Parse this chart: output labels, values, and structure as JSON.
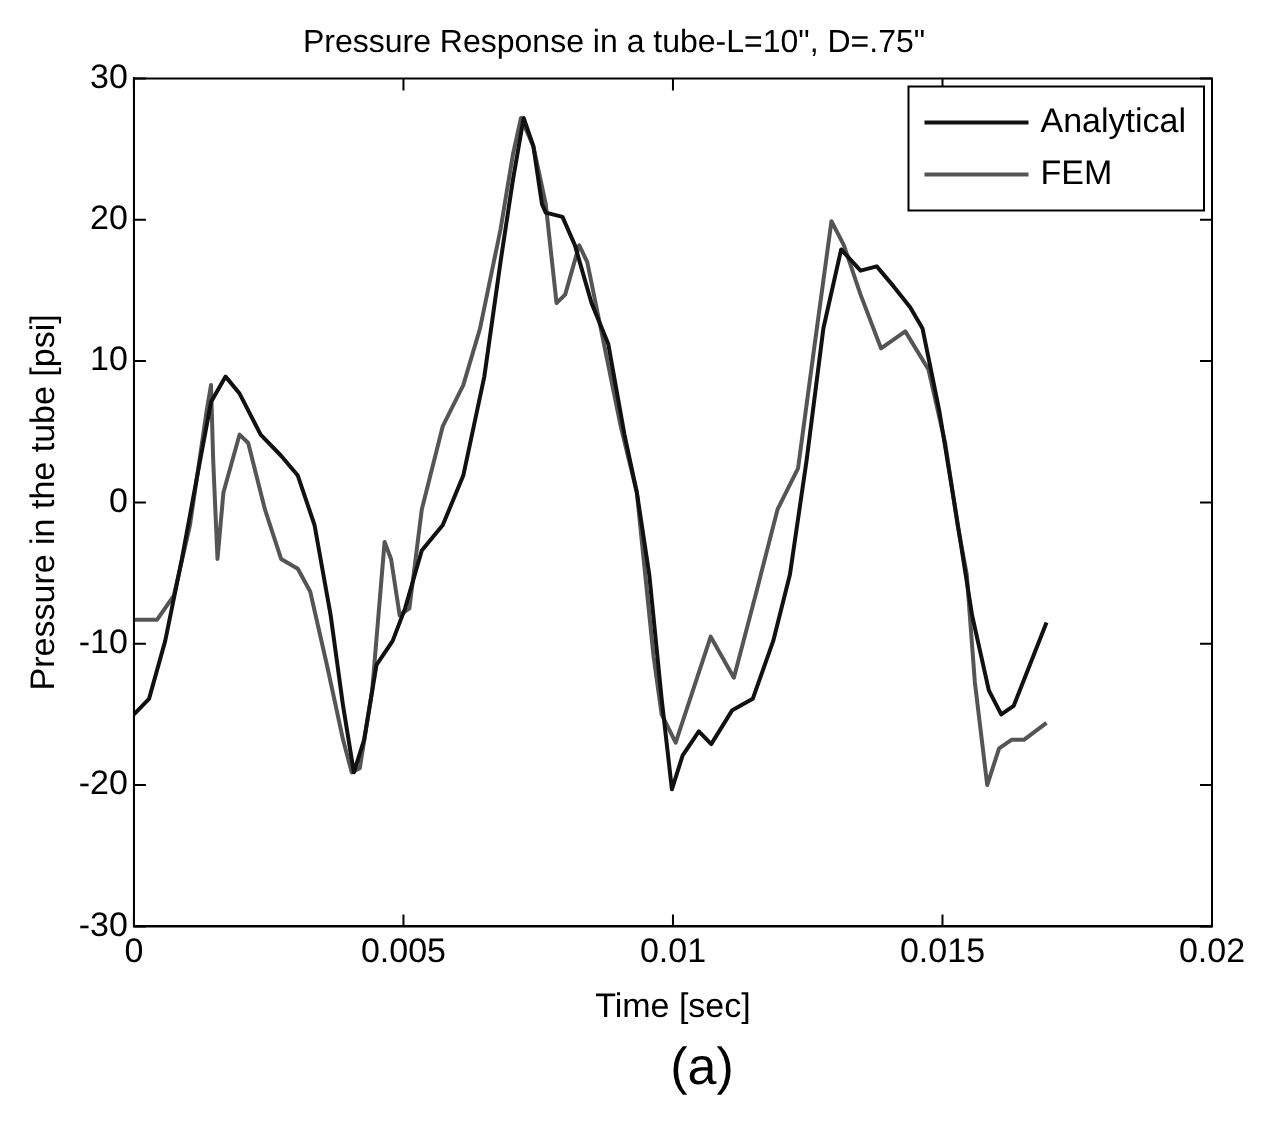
{
  "chart_data": {
    "type": "line",
    "title": "Pressure Response in a tube-L=10\", D=.75\"",
    "xlabel": "Time [sec]",
    "ylabel": "Pressure in the tube [psi]",
    "annotations": [
      "(a)"
    ],
    "xlim": [
      0,
      0.02
    ],
    "xticks": [
      0,
      0.005,
      0.01,
      0.015,
      0.02
    ],
    "ylim": [
      -30,
      30
    ],
    "yticks": [
      -30,
      -20,
      -10,
      0,
      10,
      20,
      30
    ],
    "grid": false,
    "legend": "top right",
    "marker": "none",
    "line_style": "solid",
    "series": [
      {
        "name": "Analytical",
        "color": "#111111",
        "x": [
          0,
          0.00028,
          0.00058,
          0.00089,
          0.0012,
          0.00143,
          0.0017,
          0.00196,
          0.00235,
          0.00273,
          0.00304,
          0.00335,
          0.00365,
          0.00388,
          0.00408,
          0.00427,
          0.0045,
          0.0048,
          0.00503,
          0.00534,
          0.00573,
          0.00611,
          0.0065,
          0.0068,
          0.00703,
          0.00723,
          0.00741,
          0.00757,
          0.00764,
          0.00795,
          0.00818,
          0.00849,
          0.0088,
          0.0091,
          0.00933,
          0.00956,
          0.00979,
          0.00998,
          0.01018,
          0.01048,
          0.01071,
          0.0111,
          0.01148,
          0.01186,
          0.01217,
          0.01248,
          0.01279,
          0.01312,
          0.01348,
          0.01378,
          0.01409,
          0.0144,
          0.01463,
          0.01494,
          0.01524,
          0.01555,
          0.01586,
          0.01609,
          0.01632,
          0.01662,
          0.01693
        ],
        "values": [
          -15,
          -13.9,
          -9.8,
          -4,
          2.4,
          7.1,
          8.9,
          7.7,
          4.8,
          3.3,
          1.9,
          -1.6,
          -8,
          -14.4,
          -19.1,
          -16.8,
          -11.5,
          -9.8,
          -7.5,
          -3.4,
          -1.6,
          1.9,
          8.9,
          17,
          22.8,
          27.2,
          25.2,
          21.1,
          20.5,
          20.2,
          18.2,
          14.1,
          11.2,
          4.8,
          0.7,
          -5.1,
          -13.9,
          -20.3,
          -17.9,
          -16.2,
          -17.1,
          -14.7,
          -13.9,
          -9.8,
          -5.1,
          3,
          12.3,
          17.9,
          16.4,
          16.7,
          15.3,
          13.8,
          12.3,
          6.5,
          -0.5,
          -8,
          -13.3,
          -15,
          -14.4,
          -11.5,
          -8.5
        ]
      },
      {
        "name": "FEM",
        "color": "#555555",
        "x": [
          0,
          0.00043,
          0.00074,
          0.00104,
          0.00135,
          0.00143,
          0.00147,
          0.00155,
          0.00166,
          0.00196,
          0.00212,
          0.00243,
          0.00273,
          0.00304,
          0.00327,
          0.00358,
          0.00388,
          0.00404,
          0.00419,
          0.00442,
          0.00465,
          0.00477,
          0.00493,
          0.00511,
          0.00534,
          0.00573,
          0.00611,
          0.00642,
          0.0068,
          0.00703,
          0.00718,
          0.00741,
          0.00764,
          0.00784,
          0.008,
          0.00826,
          0.00841,
          0.00872,
          0.00903,
          0.00933,
          0.00964,
          0.00979,
          0.01005,
          0.0107,
          0.01113,
          0.01155,
          0.01194,
          0.01232,
          0.01263,
          0.01294,
          0.01317,
          0.01348,
          0.01386,
          0.01431,
          0.01474,
          0.01505,
          0.01528,
          0.01545,
          0.0156,
          0.01583,
          0.01605,
          0.01628,
          0.01651,
          0.01693
        ],
        "values": [
          -8.3,
          -8.3,
          -6.6,
          -1.6,
          6.5,
          8.3,
          3,
          -4,
          0.7,
          4.8,
          4.2,
          -0.5,
          -4,
          -4.7,
          -6.3,
          -11.5,
          -16.8,
          -19.1,
          -18.8,
          -13.3,
          -2.8,
          -4,
          -8,
          -7.5,
          -0.5,
          5.4,
          8.3,
          12.3,
          19.3,
          24.6,
          27.2,
          25.2,
          21.1,
          14.1,
          14.7,
          18.2,
          17,
          11.2,
          5.4,
          0.7,
          -10.9,
          -15,
          -17,
          -9.5,
          -12.4,
          -6.3,
          -0.5,
          2.4,
          11.2,
          19.9,
          18.2,
          14.7,
          10.9,
          12.1,
          9.4,
          4.2,
          -1.6,
          -5.1,
          -12.7,
          -20,
          -17.4,
          -16.8,
          -16.8,
          -15.6
        ]
      }
    ]
  }
}
